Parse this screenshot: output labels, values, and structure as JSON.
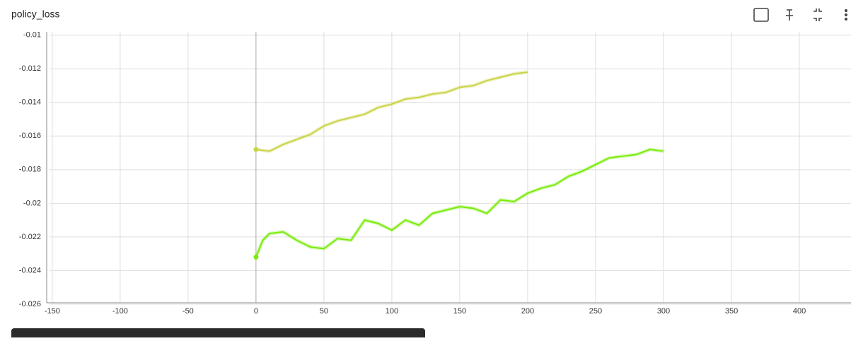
{
  "header": {
    "title": "policy_loss"
  },
  "chart_data": {
    "type": "line",
    "xlim": [
      -152,
      438
    ],
    "ylim": [
      -0.02592,
      -0.0098
    ],
    "xticks": [
      -150,
      -100,
      -50,
      0,
      50,
      100,
      150,
      200,
      250,
      300,
      350,
      400
    ],
    "yticks": [
      -0.01,
      -0.012,
      -0.014,
      -0.016,
      -0.018,
      -0.02,
      -0.022,
      -0.024,
      -0.026
    ],
    "grid": true,
    "series": [
      {
        "color": "#cad448",
        "x": [
          0,
          10,
          20,
          30,
          40,
          50,
          60,
          70,
          80,
          90,
          100,
          110,
          120,
          130,
          140,
          150,
          160,
          170,
          180,
          190,
          200
        ],
        "values": [
          -0.0168,
          -0.0169,
          -0.0165,
          -0.0162,
          -0.0159,
          -0.0154,
          -0.0151,
          -0.0149,
          -0.0147,
          -0.0143,
          -0.0141,
          -0.0138,
          -0.0137,
          -0.0135,
          -0.0134,
          -0.0131,
          -0.013,
          -0.0127,
          -0.0125,
          -0.0123,
          -0.0122
        ]
      },
      {
        "color": "#7aeb0c",
        "x": [
          0,
          5,
          10,
          20,
          30,
          40,
          50,
          60,
          70,
          80,
          90,
          100,
          110,
          120,
          130,
          140,
          150,
          160,
          170,
          180,
          190,
          200,
          210,
          220,
          230,
          240,
          250,
          260,
          270,
          280,
          290,
          300
        ],
        "values": [
          -0.0232,
          -0.0222,
          -0.0218,
          -0.0217,
          -0.0222,
          -0.0226,
          -0.0227,
          -0.0221,
          -0.0222,
          -0.021,
          -0.0212,
          -0.0216,
          -0.021,
          -0.0213,
          -0.0206,
          -0.0204,
          -0.0202,
          -0.0203,
          -0.0206,
          -0.0198,
          -0.0199,
          -0.0194,
          -0.0191,
          -0.0189,
          -0.0184,
          -0.0181,
          -0.0177,
          -0.0173,
          -0.0172,
          -0.0171,
          -0.0168,
          -0.0169
        ]
      }
    ]
  }
}
